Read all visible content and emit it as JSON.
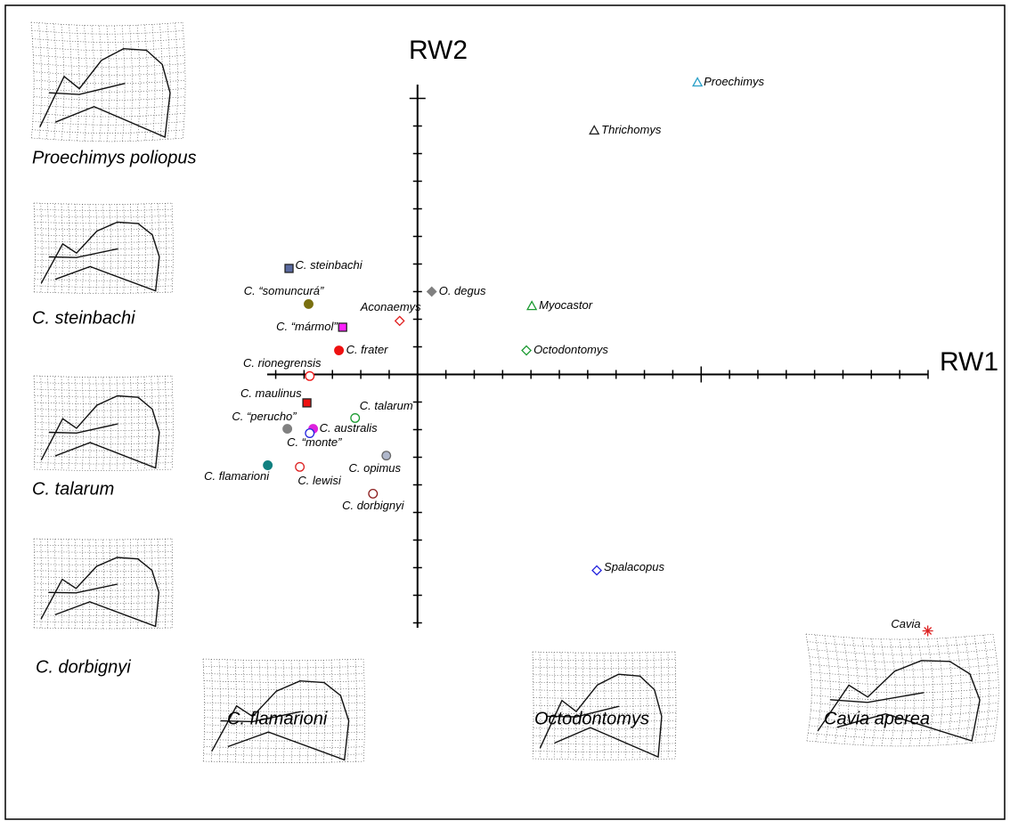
{
  "chart_data": {
    "type": "scatter",
    "x_label": "RW1",
    "y_label": "RW2",
    "xlim": [
      -5.3,
      18
    ],
    "ylim": [
      -9.5,
      10.5
    ],
    "xticks": [
      -5,
      -4,
      -3,
      -2,
      -1,
      0,
      1,
      2,
      3,
      4,
      5,
      6,
      7,
      8,
      9,
      10,
      11,
      12,
      13,
      14,
      15,
      16,
      17,
      18
    ],
    "yticks": [
      -9,
      -8,
      -7,
      -6,
      -5,
      -4,
      -3,
      -2,
      -1,
      0,
      1,
      2,
      3,
      4,
      5,
      6,
      7,
      8,
      9,
      10
    ],
    "series": [
      {
        "name": "Proechimys",
        "color": "#2aa0c8",
        "marker": "triangle",
        "filled": false,
        "x": [
          9.87
        ],
        "values": [
          10.58
        ]
      },
      {
        "name": "Thrichomys",
        "color": "#222222",
        "marker": "triangle",
        "filled": false,
        "x": [
          6.23
        ],
        "values": [
          8.84
        ]
      },
      {
        "name": "C. steinbachi",
        "color": "#5a6aa0",
        "marker": "square",
        "filled": true,
        "x": [
          -4.53
        ],
        "values": [
          3.84
        ]
      },
      {
        "name": "C. “somuncurá”",
        "color": "#7a7010",
        "marker": "circle",
        "filled": true,
        "x": [
          -3.84
        ],
        "values": [
          2.55
        ]
      },
      {
        "name": "O. degus",
        "color": "#808080",
        "marker": "diamond",
        "filled": true,
        "x": [
          0.5
        ],
        "values": [
          3.0
        ]
      },
      {
        "name": "Aconaemys",
        "color": "#e02020",
        "marker": "diamond",
        "filled": false,
        "x": [
          -0.63
        ],
        "values": [
          1.94
        ]
      },
      {
        "name": "Myocastor",
        "color": "#1a9a30",
        "marker": "triangle",
        "filled": false,
        "x": [
          4.03
        ],
        "values": [
          2.48
        ]
      },
      {
        "name": "C. “mármol”",
        "color": "#ff20ff",
        "marker": "square",
        "filled": true,
        "x": [
          -2.64
        ],
        "values": [
          1.71
        ]
      },
      {
        "name": "C. frater",
        "color": "#ee1111",
        "marker": "circle",
        "filled": true,
        "x": [
          -2.77
        ],
        "values": [
          0.87
        ]
      },
      {
        "name": "Octodontomys",
        "color": "#1a9a30",
        "marker": "diamond",
        "filled": false,
        "x": [
          3.84
        ],
        "values": [
          0.87
        ]
      },
      {
        "name": "C. rionegrensis",
        "color": "#ee1111",
        "marker": "circle",
        "filled": false,
        "x": [
          -3.8
        ],
        "values": [
          -0.06
        ]
      },
      {
        "name": "C. maulinus",
        "color": "#ee1111",
        "marker": "square",
        "filled": true,
        "x": [
          -3.9
        ],
        "values": [
          -1.03
        ]
      },
      {
        "name": "C. talarum",
        "color": "#1a9a30",
        "marker": "circle",
        "filled": false,
        "x": [
          -2.2
        ],
        "values": [
          -1.58
        ]
      },
      {
        "name": "C. “perucho”",
        "color": "#808080",
        "marker": "circle",
        "filled": true,
        "x": [
          -4.59
        ],
        "values": [
          -1.97
        ]
      },
      {
        "name": "C. australis",
        "color": "#dd22dd",
        "marker": "circle",
        "filled": true,
        "x": [
          -3.68
        ],
        "values": [
          -1.97
        ]
      },
      {
        "name": "C. “monte”",
        "color": "#2222dd",
        "marker": "circle",
        "filled": false,
        "x": [
          -3.8
        ],
        "values": [
          -2.13
        ]
      },
      {
        "name": "C. flamarioni",
        "color": "#108080",
        "marker": "circle",
        "filled": true,
        "x": [
          -5.28
        ],
        "values": [
          -3.29
        ]
      },
      {
        "name": "C. lewisi",
        "color": "#dd2222",
        "marker": "circle",
        "filled": false,
        "x": [
          -4.15
        ],
        "values": [
          -3.35
        ]
      },
      {
        "name": "C. opimus",
        "color": "#b0b8cc",
        "marker": "circle",
        "filled": true,
        "x": [
          -1.1
        ],
        "values": [
          -2.94
        ]
      },
      {
        "name": "C. dorbignyi",
        "color": "#8a1a1a",
        "marker": "circle",
        "filled": false,
        "x": [
          -1.57
        ],
        "values": [
          -4.32
        ]
      },
      {
        "name": "Spalacopus",
        "color": "#2222dd",
        "marker": "diamond",
        "filled": false,
        "x": [
          6.32
        ],
        "values": [
          -7.1
        ]
      },
      {
        "name": "Cavia",
        "color": "#dd2222",
        "marker": "asterisk",
        "filled": false,
        "x": [
          17.99
        ],
        "values": [
          -9.29
        ]
      }
    ],
    "panels": [
      "Proechimys poliopus",
      "C. steinbachi",
      "C. talarum",
      "C. dorbignyi",
      "C. flamarioni",
      "Octodontomys",
      "Cavia aperea"
    ]
  }
}
